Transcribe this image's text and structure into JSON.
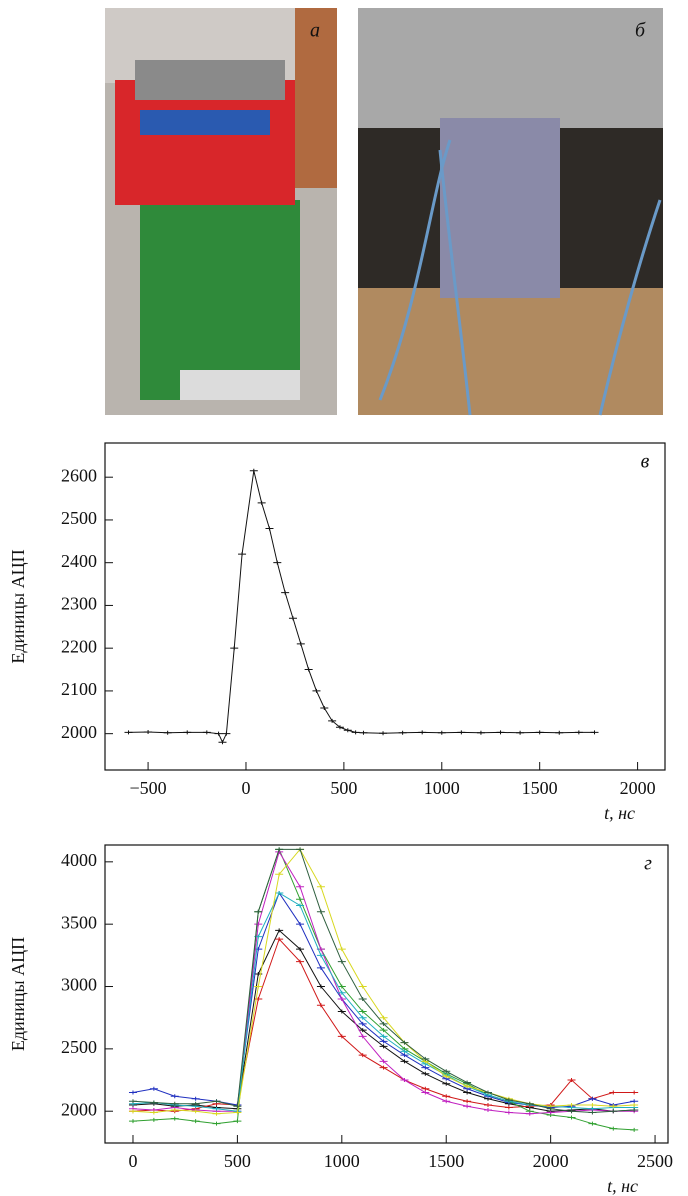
{
  "panels": {
    "a": "а",
    "b": "б"
  },
  "chart_data": [
    {
      "type": "line",
      "label": "в",
      "ylabel": "Единицы АЦП",
      "xlabel": "t, нс",
      "x": [
        -600,
        -500,
        -400,
        -300,
        -200,
        -140,
        -120,
        -100,
        -60,
        -20,
        40,
        80,
        120,
        160,
        200,
        240,
        280,
        320,
        360,
        400,
        440,
        480,
        520,
        560,
        600,
        700,
        800,
        900,
        1000,
        1100,
        1200,
        1300,
        1400,
        1500,
        1600,
        1700,
        1780
      ],
      "series": [
        {
          "color": "#111111",
          "values": [
            2003,
            2004,
            2002,
            2003,
            2003,
            2000,
            1980,
            2000,
            2200,
            2420,
            2615,
            2540,
            2480,
            2400,
            2330,
            2270,
            2210,
            2150,
            2100,
            2060,
            2030,
            2015,
            2008,
            2003,
            2002,
            2001,
            2002,
            2003,
            2002,
            2003,
            2002,
            2003,
            2002,
            2003,
            2002,
            2003,
            2003
          ]
        }
      ],
      "xlim": [
        -720,
        2140
      ],
      "ylim": [
        1915,
        2680
      ],
      "xticks": [
        {
          "value": -500,
          "label": "−500"
        },
        0,
        500,
        1000,
        1500,
        2000
      ],
      "yticks": [
        2000,
        2100,
        2200,
        2300,
        2400,
        2500,
        2600
      ]
    },
    {
      "type": "line",
      "label": "г",
      "ylabel": "Единицы АЦП",
      "xlabel": "t, нс",
      "x": [
        0,
        100,
        200,
        300,
        400,
        500,
        600,
        700,
        800,
        900,
        1000,
        1100,
        1200,
        1300,
        1400,
        1500,
        1600,
        1700,
        1800,
        1900,
        2000,
        2100,
        2200,
        2300,
        2400
      ],
      "series": [
        {
          "color": "#111111",
          "values": [
            2050,
            2060,
            2040,
            2050,
            2030,
            2020,
            3100,
            3450,
            3300,
            3000,
            2800,
            2650,
            2520,
            2400,
            2300,
            2220,
            2150,
            2100,
            2060,
            2030,
            2000,
            2010,
            2020,
            2000,
            2010
          ]
        },
        {
          "color": "#d01818",
          "values": [
            2000,
            2010,
            2000,
            2020,
            2060,
            2050,
            2900,
            3380,
            3200,
            2850,
            2600,
            2450,
            2350,
            2250,
            2180,
            2120,
            2080,
            2050,
            2030,
            2040,
            2050,
            2250,
            2100,
            2150,
            2150
          ]
        },
        {
          "color": "#2030c0",
          "values": [
            2150,
            2180,
            2120,
            2100,
            2080,
            2050,
            3300,
            3750,
            3500,
            3150,
            2900,
            2700,
            2560,
            2450,
            2350,
            2260,
            2180,
            2120,
            2070,
            2050,
            2030,
            2040,
            2100,
            2050,
            2080
          ]
        },
        {
          "color": "#30a030",
          "values": [
            1920,
            1930,
            1940,
            1920,
            1900,
            1920,
            3600,
            4100,
            3700,
            3300,
            3000,
            2800,
            2650,
            2500,
            2400,
            2300,
            2220,
            2130,
            2080,
            2000,
            1970,
            1950,
            1900,
            1860,
            1850
          ]
        },
        {
          "color": "#c020c0",
          "values": [
            2020,
            2010,
            2030,
            2010,
            2000,
            2000,
            3500,
            4080,
            3800,
            3300,
            2900,
            2600,
            2400,
            2250,
            2150,
            2080,
            2040,
            2010,
            1990,
            1980,
            1990,
            2000,
            2010,
            2000,
            2000
          ]
        },
        {
          "color": "#20b0c0",
          "values": [
            2060,
            2070,
            2050,
            2040,
            2020,
            2000,
            3400,
            3750,
            3650,
            3250,
            2950,
            2750,
            2600,
            2480,
            2380,
            2290,
            2200,
            2130,
            2080,
            2050,
            2040,
            2030,
            2020,
            2030,
            2030
          ]
        },
        {
          "color": "#d8d820",
          "values": [
            2000,
            1990,
            2010,
            2000,
            1980,
            1990,
            3000,
            3900,
            4100,
            3800,
            3300,
            3000,
            2750,
            2550,
            2400,
            2280,
            2200,
            2150,
            2100,
            2060,
            2040,
            2050,
            2050,
            2040,
            2050
          ]
        },
        {
          "color": "#2f5f3f",
          "values": [
            2080,
            2070,
            2060,
            2060,
            2080,
            2040,
            3600,
            4100,
            4100,
            3600,
            3200,
            2900,
            2700,
            2550,
            2420,
            2320,
            2230,
            2150,
            2090,
            2060,
            2020,
            2000,
            1990,
            2000,
            2010
          ]
        }
      ],
      "xlim": [
        -134,
        2562
      ],
      "ylim": [
        1745,
        4135
      ],
      "xticks": [
        0,
        500,
        1000,
        1500,
        2000,
        2500
      ],
      "yticks": [
        2000,
        2500,
        3000,
        3500,
        4000
      ]
    }
  ]
}
